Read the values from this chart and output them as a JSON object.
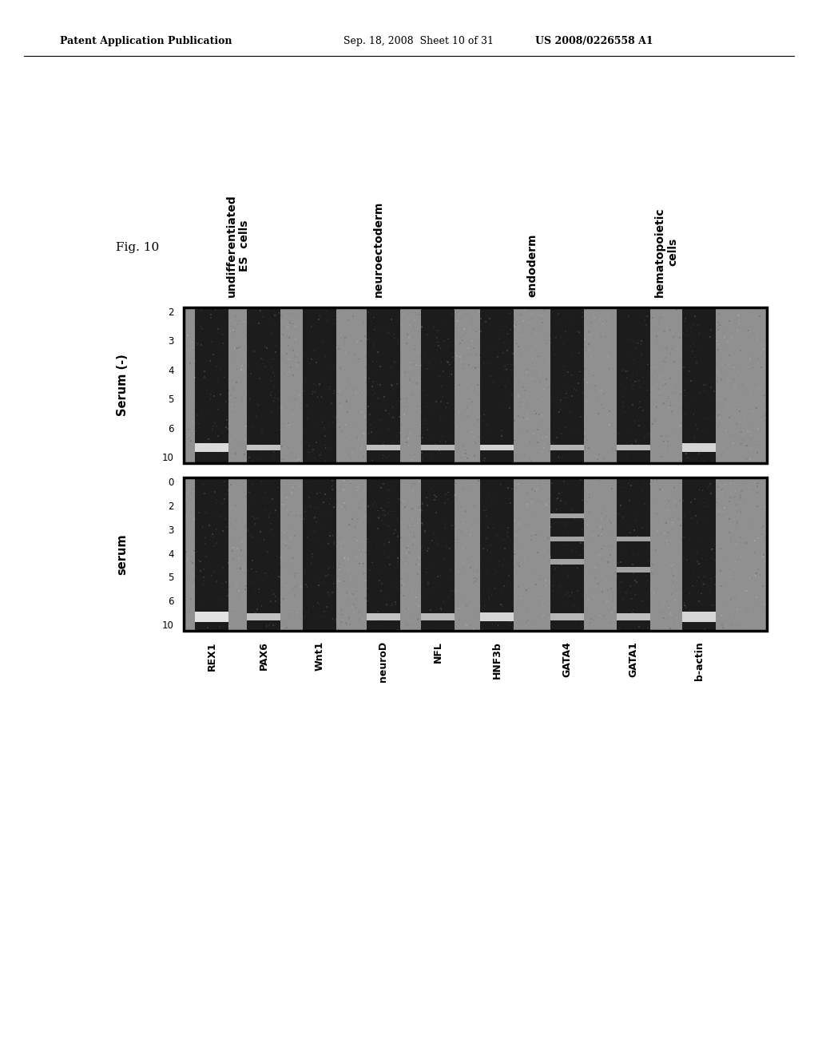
{
  "header_left": "Patent Application Publication",
  "header_center": "Sep. 18, 2008  Sheet 10 of 31",
  "header_right": "US 2008/0226558 A1",
  "fig_label": "Fig. 10",
  "category_labels": [
    "undifferentiated\nES cells",
    "neuroectoderm",
    "endoderm",
    "hematopoietic\ncells"
  ],
  "gene_labels": [
    "REX1",
    "PAX6",
    "Wnt1",
    "neuroD",
    "NFL",
    "HNF3b",
    "GATA4",
    "GATA1",
    "b-actin"
  ],
  "serum_label": "serum",
  "serum_minus_label": "Serum (-)",
  "serum_ticks": [
    "0",
    "2",
    "3",
    "4",
    "5",
    "6",
    "10"
  ],
  "serum_minus_ticks": [
    "2",
    "3",
    "4",
    "5",
    "6",
    "10"
  ],
  "bg_color": "#ffffff",
  "gel_gray": "#909090",
  "lane_dark": "#1c1c1c",
  "lane_light": "#d0d0d0"
}
